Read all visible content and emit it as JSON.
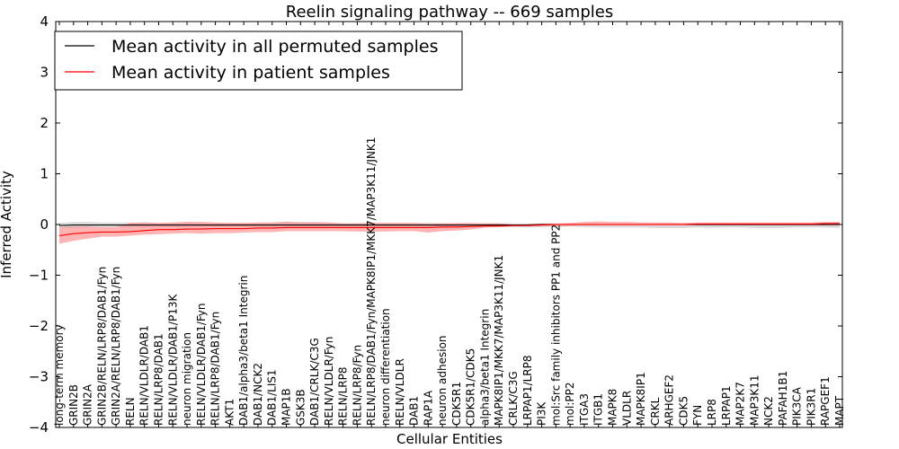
{
  "chart_data": {
    "type": "line",
    "title": "Reelin signaling pathway -- 669 samples",
    "xlabel": "Cellular Entities",
    "ylabel": "Inferred Activity",
    "ylim": [
      -4,
      4
    ],
    "yticks": [
      {
        "value": -4,
        "label": "−4"
      },
      {
        "value": -3,
        "label": "−3"
      },
      {
        "value": -2,
        "label": "−2"
      },
      {
        "value": -1,
        "label": "−1"
      },
      {
        "value": 0,
        "label": "0"
      },
      {
        "value": 1,
        "label": "1"
      },
      {
        "value": 2,
        "label": "2"
      },
      {
        "value": 3,
        "label": "3"
      },
      {
        "value": 4,
        "label": "4"
      }
    ],
    "grid": false,
    "legend_position": "upper-left",
    "legend": [
      {
        "label": "Mean activity in all permuted samples",
        "color": "#000000"
      },
      {
        "label": "Mean activity in patient samples",
        "color": "#ff0000"
      }
    ],
    "categories": [
      "long-term memory",
      "GRIN2B",
      "GRIN2A",
      "GRIN2B/RELN/LRP8/DAB1/Fyn",
      "GRIN2A/RELN/LRP8/DAB1/Fyn",
      "RELN",
      "RELN/VLDLR/DAB1",
      "RELN/LRP8/DAB1",
      "RELN/VLDLR/DAB1/P13K",
      "neuron migration",
      "RELN/VLDLR/DAB1/Fyn",
      "RELN/LRP8/DAB1/Fyn",
      "AKT1",
      "DAB1/alpha3/beta1 Integrin",
      "DAB1/NCK2",
      "DAB1/LIS1",
      "MAP1B",
      "GSK3B",
      "DAB1/CRLK/C3G",
      "RELN/VLDLR/Fyn",
      "RELN/LRP8",
      "RELN/LRP8/Fyn",
      "RELN/LRP8/DAB1/Fyn/MAPK8IP1/MKK7/MAP3K11/JNK1",
      "neuron differentiation",
      "RELN/VLDLR",
      "DAB1",
      "RAP1A",
      "neuron adhesion",
      "CDK5R1",
      "CDK5R1/CDK5",
      "alpha3/beta1 Integrin",
      "MAPK8IP1/MKK7/MAP3K11/JNK1",
      "CRLK/C3G",
      "LRPAP1/LRP8",
      "PI3K",
      "mol:Src family inhibitors PP1 and PP2",
      "mol:PP2",
      "ITGA3",
      "ITGB1",
      "MAPK8",
      "VLDLR",
      "MAPK8IP1",
      "CRKL",
      "ARHGEF2",
      "CDK5",
      "FYN",
      "LRP8",
      "LRPAP1",
      "MAP2K7",
      "MAP3K11",
      "NCK2",
      "PAFAH1B1",
      "PIK3CA",
      "PIK3R1",
      "RAPGEF1",
      "MAPT"
    ],
    "series": [
      {
        "name": "Mean activity in all permuted samples",
        "color": "#000000",
        "band_color": "#b0b0b0",
        "values": [
          -0.02,
          -0.01,
          -0.01,
          -0.01,
          -0.01,
          -0.01,
          -0.01,
          -0.01,
          -0.01,
          -0.01,
          -0.01,
          -0.01,
          -0.01,
          -0.01,
          -0.01,
          -0.01,
          -0.01,
          -0.01,
          -0.01,
          -0.01,
          -0.01,
          -0.01,
          -0.01,
          -0.01,
          -0.01,
          -0.01,
          -0.01,
          -0.01,
          -0.01,
          -0.01,
          -0.01,
          -0.01,
          -0.01,
          -0.01,
          0.0,
          0.0,
          0.0,
          0.0,
          0.0,
          0.0,
          0.0,
          0.0,
          0.0,
          0.0,
          0.0,
          0.0,
          0.0,
          0.0,
          0.0,
          0.0,
          0.0,
          0.0,
          0.0,
          0.0,
          0.0,
          0.0
        ],
        "lower": [
          -0.06,
          -0.07,
          -0.06,
          -0.05,
          -0.05,
          -0.05,
          -0.05,
          -0.05,
          -0.05,
          -0.05,
          -0.05,
          -0.05,
          -0.05,
          -0.05,
          -0.05,
          -0.05,
          -0.05,
          -0.05,
          -0.05,
          -0.05,
          -0.05,
          -0.05,
          -0.05,
          -0.05,
          -0.05,
          -0.05,
          -0.05,
          -0.05,
          -0.05,
          -0.05,
          -0.05,
          -0.05,
          -0.05,
          -0.06,
          -0.05,
          -0.05,
          -0.04,
          -0.05,
          -0.06,
          -0.06,
          -0.06,
          -0.06,
          -0.07,
          -0.07,
          -0.07,
          -0.06,
          -0.07,
          -0.06,
          -0.06,
          -0.07,
          -0.07,
          -0.07,
          -0.06,
          -0.06,
          -0.06,
          -0.07
        ],
        "upper": [
          0.03,
          0.05,
          0.05,
          0.04,
          0.04,
          0.04,
          0.04,
          0.03,
          0.03,
          0.04,
          0.03,
          0.03,
          0.03,
          0.03,
          0.03,
          0.04,
          0.05,
          0.05,
          0.05,
          0.04,
          0.03,
          0.03,
          0.03,
          0.03,
          0.03,
          0.03,
          0.03,
          0.03,
          0.02,
          0.02,
          0.03,
          0.03,
          0.02,
          0.02,
          0.02,
          0.02,
          0.02,
          0.02,
          0.02,
          0.02,
          0.02,
          0.02,
          0.02,
          0.02,
          0.02,
          0.02,
          0.02,
          0.02,
          0.02,
          0.02,
          0.02,
          0.02,
          0.02,
          0.02,
          0.02,
          0.02
        ]
      },
      {
        "name": "Mean activity in patient samples",
        "color": "#ff0000",
        "band_color": "#ff8080",
        "values": [
          -0.22,
          -0.18,
          -0.16,
          -0.15,
          -0.15,
          -0.14,
          -0.12,
          -0.1,
          -0.1,
          -0.09,
          -0.09,
          -0.08,
          -0.08,
          -0.08,
          -0.07,
          -0.07,
          -0.06,
          -0.06,
          -0.06,
          -0.06,
          -0.06,
          -0.06,
          -0.06,
          -0.06,
          -0.06,
          -0.06,
          -0.06,
          -0.05,
          -0.05,
          -0.04,
          -0.03,
          -0.03,
          -0.02,
          -0.02,
          -0.01,
          0.0,
          0.0,
          0.0,
          0.0,
          0.0,
          0.0,
          0.0,
          0.0,
          0.0,
          0.0,
          0.01,
          0.01,
          0.01,
          0.01,
          0.01,
          0.01,
          0.01,
          0.01,
          0.01,
          0.02,
          0.02
        ],
        "lower": [
          -0.38,
          -0.32,
          -0.28,
          -0.24,
          -0.24,
          -0.22,
          -0.2,
          -0.19,
          -0.18,
          -0.17,
          -0.18,
          -0.17,
          -0.17,
          -0.16,
          -0.15,
          -0.15,
          -0.13,
          -0.13,
          -0.13,
          -0.13,
          -0.13,
          -0.14,
          -0.14,
          -0.14,
          -0.13,
          -0.13,
          -0.16,
          -0.13,
          -0.12,
          -0.1,
          -0.06,
          -0.05,
          -0.04,
          -0.04,
          -0.03,
          -0.03,
          -0.03,
          -0.02,
          -0.02,
          -0.02,
          -0.02,
          -0.02,
          -0.02,
          -0.02,
          -0.02,
          -0.02,
          -0.02,
          -0.02,
          -0.02,
          -0.02,
          -0.02,
          -0.02,
          -0.02,
          -0.02,
          -0.02,
          -0.02
        ],
        "upper": [
          -0.05,
          -0.04,
          -0.04,
          -0.05,
          -0.05,
          0.03,
          0.04,
          0.03,
          0.04,
          0.05,
          0.05,
          0.04,
          0.03,
          0.03,
          0.04,
          0.04,
          0.05,
          0.04,
          0.04,
          0.04,
          0.02,
          0.02,
          0.03,
          0.03,
          0.03,
          0.03,
          0.02,
          0.02,
          0.03,
          0.03,
          0.02,
          0.02,
          0.0,
          0.01,
          0.02,
          0.02,
          0.03,
          0.05,
          0.06,
          0.05,
          0.05,
          0.04,
          0.04,
          0.04,
          0.03,
          0.04,
          0.04,
          0.04,
          0.04,
          0.04,
          0.04,
          0.04,
          0.04,
          0.04,
          0.05,
          0.05
        ]
      }
    ]
  }
}
